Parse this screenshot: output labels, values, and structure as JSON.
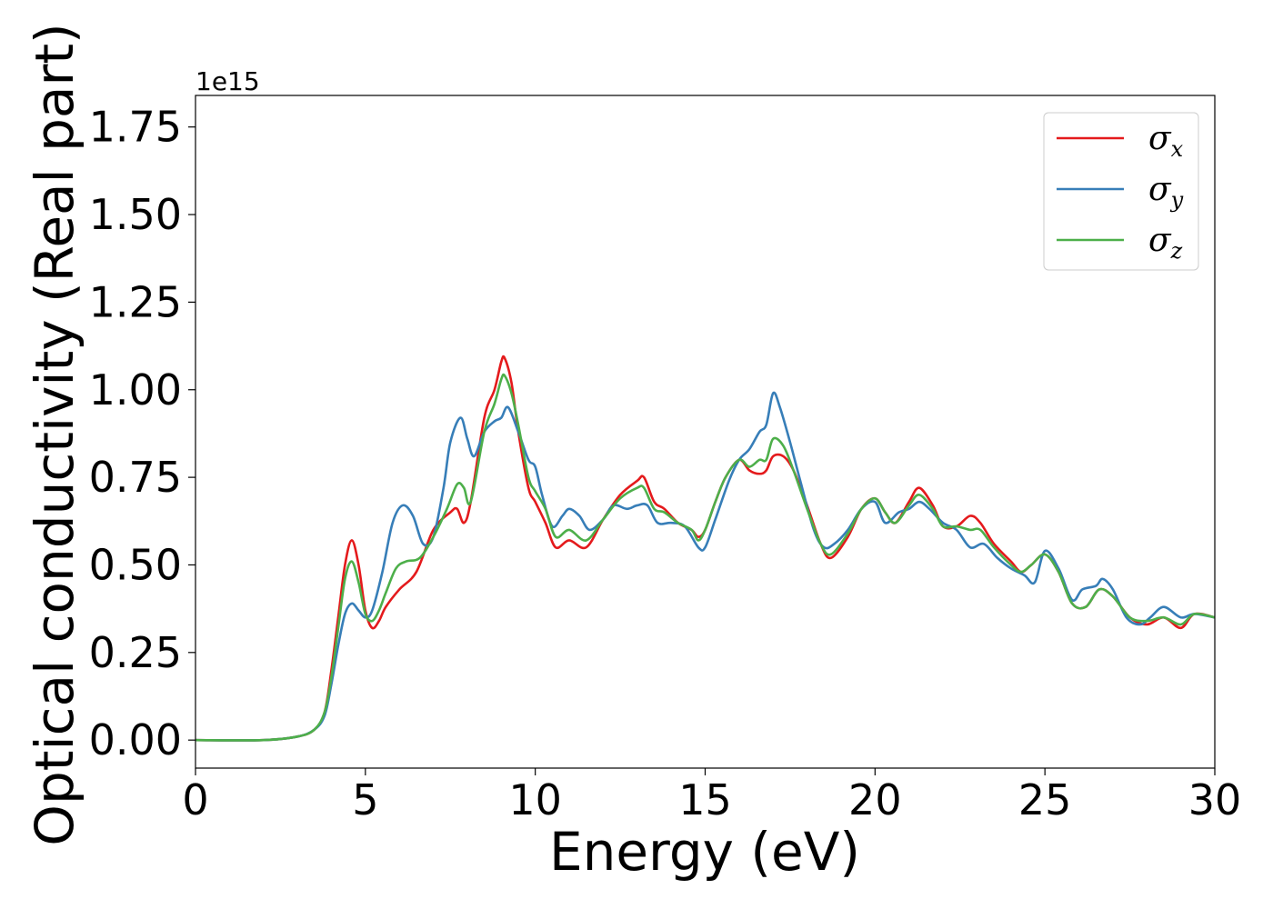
{
  "chart_data": {
    "type": "line",
    "xlabel": "Energy (eV)",
    "ylabel": "Optical conductivity (Real part)",
    "y_offset_label": "1e15",
    "xlim": [
      0,
      30
    ],
    "ylim": [
      -0.08,
      1.84
    ],
    "x_ticks": [
      0,
      5,
      10,
      15,
      20,
      25,
      30
    ],
    "x_tick_labels": [
      "0",
      "5",
      "10",
      "15",
      "20",
      "25",
      "30"
    ],
    "y_ticks": [
      0.0,
      0.25,
      0.5,
      0.75,
      1.0,
      1.25,
      1.5,
      1.75
    ],
    "y_tick_labels": [
      "0.00",
      "0.25",
      "0.50",
      "0.75",
      "1.00",
      "1.25",
      "1.50",
      "1.75"
    ],
    "grid": false,
    "legend_position": "top-right",
    "series": [
      {
        "name": "σx",
        "sym": "σ",
        "sub": "x",
        "color": "#e41a1c",
        "x": [
          0,
          2,
          3,
          3.5,
          3.8,
          4.0,
          4.2,
          4.4,
          4.6,
          4.8,
          5.0,
          5.2,
          5.4,
          5.6,
          6.0,
          6.5,
          7.0,
          7.5,
          7.7,
          7.9,
          8.1,
          8.5,
          8.8,
          9.0,
          9.1,
          9.3,
          9.5,
          9.8,
          10.0,
          10.3,
          10.6,
          11.0,
          11.5,
          12.0,
          12.5,
          13.0,
          13.2,
          13.5,
          13.8,
          14.2,
          14.6,
          14.8,
          15.0,
          15.3,
          15.6,
          16.0,
          16.3,
          16.6,
          16.8,
          17.0,
          17.3,
          17.6,
          18.0,
          18.4,
          18.7,
          19.2,
          19.6,
          20.0,
          20.3,
          20.6,
          21.0,
          21.3,
          21.7,
          22.0,
          22.4,
          22.8,
          23.1,
          23.5,
          24.0,
          24.3,
          24.6,
          25.0,
          25.4,
          25.8,
          26.2,
          26.6,
          27.0,
          27.5,
          28.0,
          28.5,
          29.0,
          29.4,
          30.0
        ],
        "values": [
          0,
          0,
          0.01,
          0.03,
          0.08,
          0.2,
          0.35,
          0.5,
          0.57,
          0.5,
          0.37,
          0.32,
          0.34,
          0.38,
          0.43,
          0.48,
          0.6,
          0.65,
          0.66,
          0.62,
          0.68,
          0.92,
          1.0,
          1.08,
          1.09,
          1.02,
          0.88,
          0.72,
          0.68,
          0.62,
          0.55,
          0.57,
          0.55,
          0.63,
          0.7,
          0.74,
          0.75,
          0.68,
          0.66,
          0.62,
          0.6,
          0.58,
          0.6,
          0.68,
          0.75,
          0.8,
          0.77,
          0.76,
          0.77,
          0.81,
          0.81,
          0.77,
          0.67,
          0.56,
          0.52,
          0.58,
          0.66,
          0.69,
          0.65,
          0.62,
          0.68,
          0.72,
          0.67,
          0.61,
          0.61,
          0.64,
          0.62,
          0.56,
          0.51,
          0.48,
          0.5,
          0.53,
          0.48,
          0.39,
          0.38,
          0.43,
          0.41,
          0.35,
          0.33,
          0.35,
          0.32,
          0.36,
          0.35
        ]
      },
      {
        "name": "σy",
        "sym": "σ",
        "sub": "y",
        "color": "#377eb8",
        "x": [
          0,
          2,
          3,
          3.5,
          3.8,
          4.0,
          4.2,
          4.4,
          4.6,
          4.8,
          5.0,
          5.2,
          5.5,
          5.8,
          6.1,
          6.4,
          6.7,
          7.0,
          7.3,
          7.5,
          7.8,
          8.0,
          8.2,
          8.5,
          8.8,
          9.0,
          9.2,
          9.5,
          9.8,
          10.0,
          10.2,
          10.5,
          10.8,
          11.0,
          11.3,
          11.6,
          12.0,
          12.3,
          12.7,
          13.0,
          13.3,
          13.6,
          14.0,
          14.4,
          14.8,
          15.0,
          15.3,
          15.7,
          16.0,
          16.3,
          16.6,
          16.8,
          17.0,
          17.2,
          17.5,
          17.8,
          18.2,
          18.5,
          18.8,
          19.2,
          19.6,
          20.0,
          20.3,
          20.7,
          21.0,
          21.3,
          21.6,
          22.0,
          22.4,
          22.8,
          23.2,
          23.6,
          24.0,
          24.4,
          24.7,
          25.0,
          25.4,
          25.8,
          26.1,
          26.5,
          26.7,
          27.0,
          27.4,
          27.8,
          28.1,
          28.5,
          29.0,
          29.4,
          30.0
        ],
        "values": [
          0,
          0,
          0.01,
          0.03,
          0.07,
          0.16,
          0.27,
          0.36,
          0.39,
          0.37,
          0.35,
          0.37,
          0.48,
          0.62,
          0.67,
          0.64,
          0.56,
          0.58,
          0.72,
          0.85,
          0.92,
          0.86,
          0.81,
          0.88,
          0.91,
          0.92,
          0.95,
          0.88,
          0.8,
          0.78,
          0.7,
          0.61,
          0.64,
          0.66,
          0.64,
          0.6,
          0.63,
          0.67,
          0.66,
          0.67,
          0.67,
          0.62,
          0.62,
          0.61,
          0.55,
          0.55,
          0.63,
          0.74,
          0.8,
          0.83,
          0.88,
          0.9,
          0.99,
          0.95,
          0.85,
          0.74,
          0.6,
          0.55,
          0.56,
          0.6,
          0.66,
          0.68,
          0.62,
          0.65,
          0.66,
          0.68,
          0.66,
          0.62,
          0.6,
          0.55,
          0.56,
          0.52,
          0.49,
          0.47,
          0.45,
          0.54,
          0.49,
          0.4,
          0.43,
          0.44,
          0.46,
          0.43,
          0.35,
          0.33,
          0.35,
          0.38,
          0.35,
          0.36,
          0.35
        ]
      },
      {
        "name": "σz",
        "sym": "σ",
        "sub": "z",
        "color": "#4daf4a",
        "x": [
          0,
          2,
          3,
          3.5,
          3.8,
          4.0,
          4.2,
          4.4,
          4.6,
          4.8,
          5.0,
          5.2,
          5.4,
          5.6,
          5.9,
          6.2,
          6.6,
          7.0,
          7.4,
          7.7,
          7.9,
          8.1,
          8.5,
          8.8,
          9.0,
          9.1,
          9.3,
          9.5,
          9.8,
          10.0,
          10.3,
          10.6,
          11.0,
          11.5,
          12.0,
          12.5,
          13.0,
          13.2,
          13.5,
          13.8,
          14.2,
          14.6,
          14.8,
          15.0,
          15.3,
          15.6,
          16.0,
          16.3,
          16.6,
          16.8,
          17.0,
          17.3,
          17.6,
          18.0,
          18.4,
          18.7,
          19.2,
          19.6,
          20.0,
          20.3,
          20.6,
          21.0,
          21.3,
          21.7,
          22.0,
          22.4,
          22.8,
          23.1,
          23.5,
          24.0,
          24.3,
          24.6,
          25.0,
          25.4,
          25.8,
          26.2,
          26.6,
          27.0,
          27.5,
          28.0,
          28.5,
          29.0,
          29.4,
          30.0
        ],
        "values": [
          0,
          0,
          0.01,
          0.03,
          0.08,
          0.18,
          0.32,
          0.46,
          0.51,
          0.45,
          0.36,
          0.34,
          0.37,
          0.42,
          0.49,
          0.51,
          0.52,
          0.58,
          0.66,
          0.73,
          0.72,
          0.68,
          0.88,
          0.96,
          1.03,
          1.04,
          0.99,
          0.9,
          0.75,
          0.71,
          0.66,
          0.58,
          0.6,
          0.57,
          0.63,
          0.69,
          0.72,
          0.72,
          0.66,
          0.65,
          0.62,
          0.6,
          0.57,
          0.6,
          0.68,
          0.75,
          0.8,
          0.78,
          0.8,
          0.8,
          0.86,
          0.84,
          0.77,
          0.66,
          0.56,
          0.53,
          0.59,
          0.66,
          0.69,
          0.65,
          0.62,
          0.67,
          0.7,
          0.66,
          0.61,
          0.61,
          0.6,
          0.6,
          0.55,
          0.5,
          0.48,
          0.5,
          0.53,
          0.48,
          0.39,
          0.38,
          0.43,
          0.41,
          0.35,
          0.34,
          0.35,
          0.33,
          0.36,
          0.35
        ]
      }
    ]
  }
}
